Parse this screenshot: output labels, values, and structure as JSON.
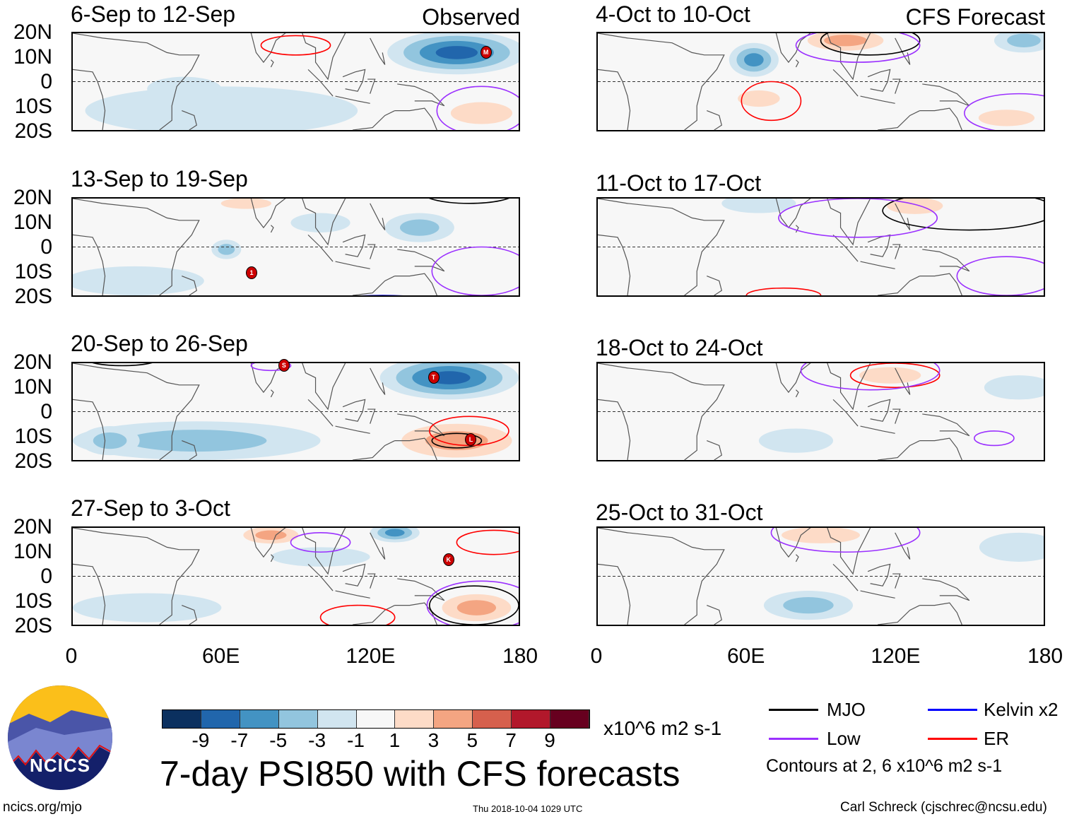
{
  "chart_data": {
    "type": "heatmap",
    "title": "7-day PSI850 with CFS forecasts",
    "units": "x10^6 m2 s-1",
    "lat_ticks": [
      "20N",
      "10N",
      "0",
      "10S",
      "20S"
    ],
    "lon_ticks": [
      "0",
      "60E",
      "120E",
      "180"
    ],
    "lon_range": [
      0,
      180
    ],
    "lat_range": [
      -20,
      20
    ],
    "colorbar": {
      "labels": [
        "-9",
        "-7",
        "-5",
        "-3",
        "-1",
        "1",
        "3",
        "5",
        "7",
        "9"
      ],
      "colors": [
        "#0b305f",
        "#2166ac",
        "#4393c3",
        "#92c5de",
        "#d1e5f0",
        "#f7f7f7",
        "#fddbc7",
        "#f4a582",
        "#d6604d",
        "#b2182b",
        "#67001f"
      ]
    },
    "panels": [
      {
        "title": "6-Sep to 12-Sep",
        "tag": "Observed",
        "anomalies": [
          [
            155,
            12,
            28,
            9,
            -7
          ],
          [
            60,
            -12,
            55,
            10,
            -2
          ],
          [
            165,
            -13,
            22,
            8,
            4
          ],
          [
            80,
            16,
            22,
            5,
            2
          ],
          [
            20,
            15,
            10,
            4,
            2
          ],
          [
            45,
            -3,
            15,
            5,
            -1
          ]
        ],
        "contours": [
          [
            "ER",
            90,
            15,
            14,
            4
          ],
          [
            "Low",
            165,
            -12,
            18,
            10
          ]
        ],
        "cyclones": [
          [
            "M",
            166,
            12
          ]
        ]
      },
      {
        "title": "13-Sep to 19-Sep",
        "tag": "",
        "anomalies": [
          [
            140,
            8,
            14,
            6,
            -3
          ],
          [
            70,
            18,
            18,
            4,
            3
          ],
          [
            25,
            -14,
            28,
            6,
            -2
          ],
          [
            62,
            -1,
            6,
            4,
            -3
          ],
          [
            130,
            -7,
            15,
            5,
            2
          ],
          [
            100,
            10,
            12,
            4,
            -2
          ]
        ],
        "contours": [
          [
            "MJO",
            160,
            22,
            18,
            4
          ],
          [
            "Low",
            165,
            -10,
            20,
            10
          ],
          [
            "Kelvin",
            125,
            -22,
            18,
            2
          ]
        ],
        "cyclones": [
          [
            "1",
            72,
            -10
          ]
        ]
      },
      {
        "title": "20-Sep to 26-Sep",
        "tag": "",
        "anomalies": [
          [
            152,
            14,
            28,
            9,
            -7
          ],
          [
            155,
            -12,
            32,
            10,
            6
          ],
          [
            50,
            -12,
            50,
            8,
            -3
          ],
          [
            90,
            18,
            12,
            3,
            2
          ],
          [
            15,
            -12,
            12,
            6,
            -3
          ]
        ],
        "contours": [
          [
            "MJO",
            155,
            -12,
            10,
            3
          ],
          [
            "ER",
            160,
            -8,
            16,
            6
          ],
          [
            "Low",
            80,
            19,
            8,
            2
          ],
          [
            "MJO",
            20,
            22,
            15,
            3
          ]
        ],
        "cyclones": [
          [
            "S",
            85,
            19
          ],
          [
            "T",
            145,
            14
          ],
          [
            "L",
            160,
            -11
          ]
        ]
      },
      {
        "title": "27-Sep to 3-Oct",
        "tag": "",
        "anomalies": [
          [
            80,
            17,
            16,
            5,
            5
          ],
          [
            130,
            18,
            10,
            4,
            -5
          ],
          [
            163,
            -13,
            20,
            8,
            6
          ],
          [
            30,
            -13,
            30,
            6,
            -2
          ],
          [
            100,
            8,
            20,
            4,
            -1
          ],
          [
            140,
            -5,
            18,
            5,
            2
          ]
        ],
        "contours": [
          [
            "MJO",
            162,
            -12,
            18,
            8
          ],
          [
            "Low",
            165,
            -12,
            22,
            10
          ],
          [
            "Low",
            100,
            14,
            12,
            4
          ],
          [
            "ER",
            115,
            -17,
            15,
            5
          ],
          [
            "ER",
            170,
            14,
            15,
            5
          ]
        ],
        "cyclones": [
          [
            "K",
            151,
            7
          ]
        ]
      },
      {
        "title": "4-Oct to 10-Oct",
        "tag": "CFS Forecast",
        "anomalies": [
          [
            100,
            17,
            22,
            6,
            5
          ],
          [
            63,
            9,
            10,
            7,
            -5
          ],
          [
            65,
            -7,
            15,
            6,
            3
          ],
          [
            165,
            -15,
            20,
            6,
            4
          ],
          [
            172,
            17,
            12,
            5,
            -3
          ],
          [
            130,
            -2,
            18,
            4,
            2
          ],
          [
            90,
            -15,
            20,
            5,
            2
          ]
        ],
        "contours": [
          [
            "MJO",
            110,
            17,
            20,
            6
          ],
          [
            "Low",
            105,
            15,
            25,
            7
          ],
          [
            "ER",
            70,
            -8,
            12,
            8
          ],
          [
            "Low",
            170,
            -13,
            22,
            8
          ]
        ],
        "cyclones": []
      },
      {
        "title": "11-Oct to 17-Oct",
        "tag": "",
        "anomalies": [
          [
            128,
            17,
            20,
            6,
            4
          ],
          [
            65,
            18,
            15,
            4,
            -2
          ],
          [
            72,
            -4,
            12,
            4,
            2
          ],
          [
            155,
            -12,
            22,
            5,
            2
          ],
          [
            10,
            -15,
            15,
            5,
            2
          ]
        ],
        "contours": [
          [
            "MJO",
            150,
            15,
            35,
            8
          ],
          [
            "Low",
            105,
            12,
            32,
            8
          ],
          [
            "Low",
            165,
            -12,
            20,
            8
          ],
          [
            "ER",
            75,
            -20,
            15,
            3
          ]
        ],
        "cyclones": []
      },
      {
        "title": "18-Oct to 24-Oct",
        "tag": "",
        "anomalies": [
          [
            118,
            15,
            22,
            6,
            3
          ],
          [
            30,
            -13,
            35,
            6,
            2
          ],
          [
            80,
            -12,
            15,
            5,
            -2
          ],
          [
            170,
            10,
            14,
            5,
            -2
          ],
          [
            165,
            -8,
            20,
            6,
            2
          ],
          [
            70,
            6,
            30,
            5,
            1
          ]
        ],
        "contours": [
          [
            "ER",
            120,
            15,
            18,
            5
          ],
          [
            "Low",
            110,
            17,
            28,
            8
          ],
          [
            "Low",
            160,
            -11,
            8,
            3
          ]
        ],
        "cyclones": []
      },
      {
        "title": "25-Oct to 31-Oct",
        "tag": "",
        "anomalies": [
          [
            90,
            17,
            28,
            6,
            3
          ],
          [
            85,
            -12,
            18,
            6,
            -3
          ],
          [
            160,
            -10,
            25,
            7,
            2
          ],
          [
            170,
            12,
            16,
            6,
            -2
          ],
          [
            30,
            0,
            28,
            6,
            1
          ]
        ],
        "contours": [
          [
            "Low",
            100,
            18,
            30,
            8
          ]
        ],
        "cyclones": []
      }
    ],
    "legend": [
      {
        "label": "MJO",
        "color": "#000000"
      },
      {
        "label": "Kelvin x2",
        "color": "#0000ff"
      },
      {
        "label": "Low",
        "color": "#9b30ff"
      },
      {
        "label": "ER",
        "color": "#ff0000"
      }
    ],
    "contour_note": "Contours at 2, 6 x10^6 m2 s-1"
  },
  "footer": {
    "logo_text": "NCICS",
    "url": "ncics.org/mjo",
    "timestamp": "Thu 2018-10-04 1029 UTC",
    "author": "Carl Schreck (cjschrec@ncsu.edu)"
  }
}
